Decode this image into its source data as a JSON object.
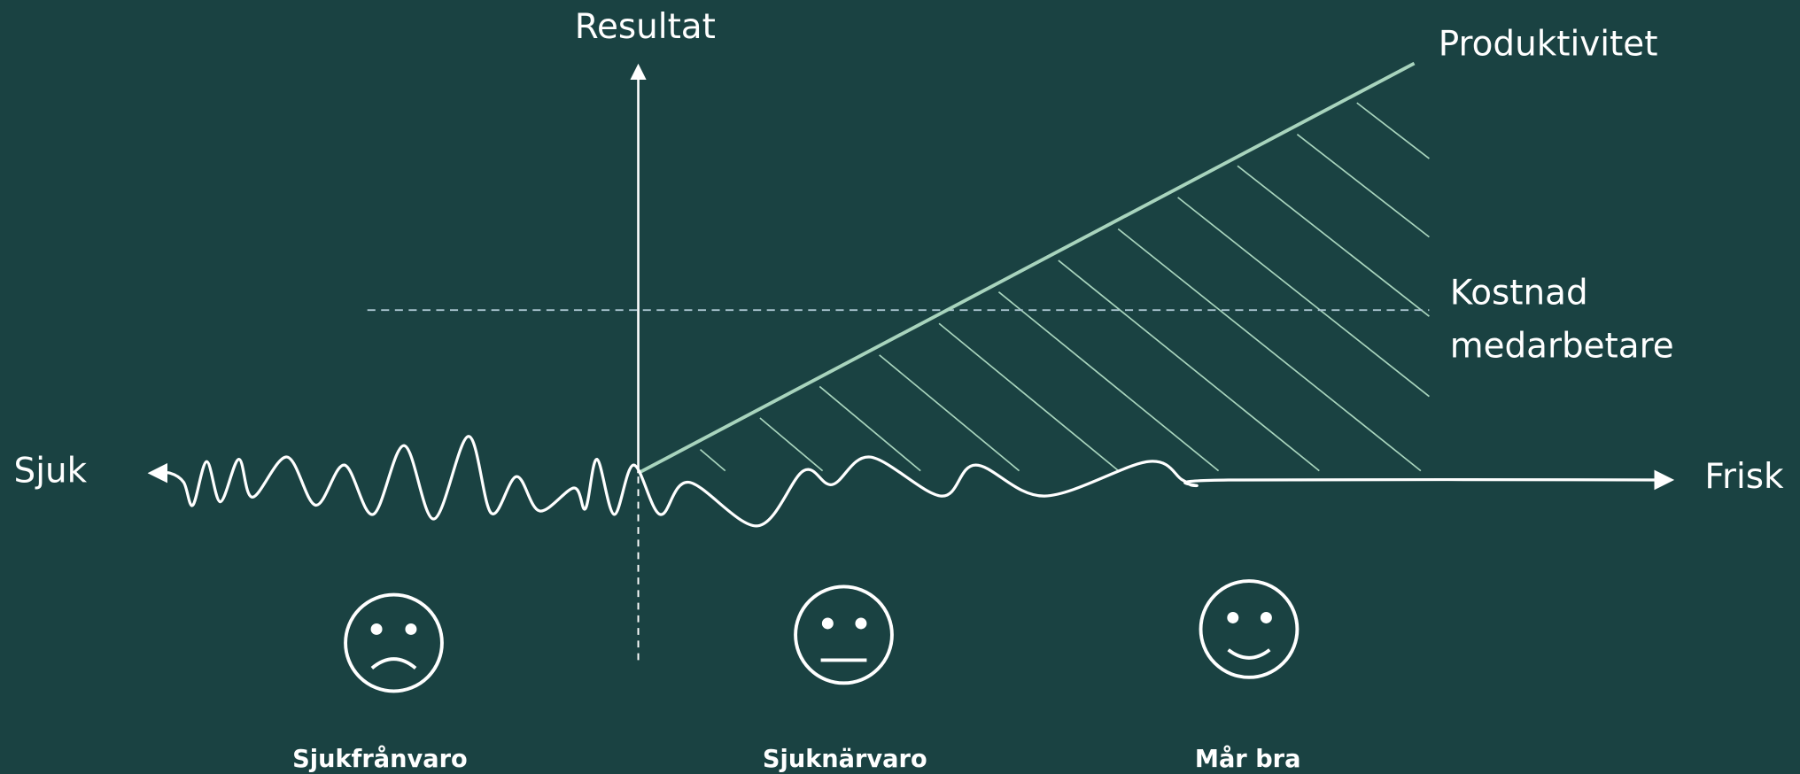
{
  "axes": {
    "y_label": "Resultat",
    "x_left": "Sjuk",
    "x_right": "Frisk"
  },
  "lines": {
    "productivity": "Produktivitet",
    "cost": [
      "Kostnad",
      "medarbetare"
    ]
  },
  "states": [
    {
      "label": "Sjukfrånvaro"
    },
    {
      "label": "Sjuknärvaro"
    },
    {
      "label": "Mår bra"
    }
  ]
}
